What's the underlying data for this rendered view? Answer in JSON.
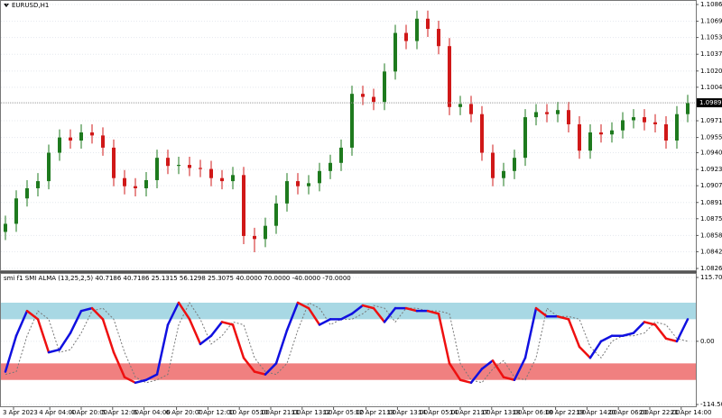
{
  "chart_data": [
    {
      "type": "candlestick",
      "title": "EURUSD,H1",
      "open": [
        1.0862,
        1.087,
        1.0895,
        1.0905,
        1.0912,
        1.094,
        1.0955,
        1.0952,
        1.096,
        1.0957,
        1.0945,
        1.0915,
        1.0907,
        1.0905,
        1.0913,
        1.0935,
        1.0927,
        1.0928,
        1.0925,
        1.0924,
        1.0915,
        1.0912,
        1.0918,
        1.0858,
        1.0855,
        1.0868,
        1.089,
        1.0912,
        1.0907,
        1.091,
        1.0922,
        1.093,
        1.0945,
        1.0998,
        1.0995,
        1.099,
        1.102,
        1.1058,
        1.105,
        1.1072,
        1.1062,
        1.1045,
        1.0985,
        1.0988,
        1.0978,
        1.094,
        1.0915,
        1.0922,
        1.0935,
        1.0975,
        1.098,
        1.0978,
        1.0982,
        1.0968,
        1.0942,
        1.096,
        1.0958,
        1.0962,
        1.0972,
        1.0975,
        1.097,
        1.0968,
        1.0952,
        1.0978
      ],
      "high": [
        1.0878,
        1.0903,
        1.0913,
        1.092,
        1.0948,
        1.0963,
        1.0963,
        1.0968,
        1.0968,
        1.0965,
        1.0953,
        1.0923,
        1.0915,
        1.0921,
        1.0943,
        1.0943,
        1.0936,
        1.0936,
        1.0933,
        1.0932,
        1.0923,
        1.0926,
        1.0926,
        1.0866,
        1.0876,
        1.0898,
        1.092,
        1.092,
        1.0918,
        1.093,
        1.0938,
        1.0953,
        1.1006,
        1.1006,
        1.1003,
        1.1028,
        1.1066,
        1.1066,
        1.108,
        1.108,
        1.107,
        1.1053,
        1.0996,
        1.0996,
        1.0986,
        1.0948,
        1.093,
        1.0943,
        1.0983,
        1.0988,
        1.0988,
        1.099,
        1.099,
        1.0976,
        1.0968,
        1.0968,
        1.097,
        1.098,
        1.0983,
        1.0983,
        1.0978,
        1.0976,
        1.0986,
        1.0997
      ],
      "low": [
        1.0854,
        1.0862,
        1.0887,
        1.0897,
        1.0904,
        1.0932,
        1.0944,
        1.0944,
        1.0949,
        1.0937,
        1.0907,
        1.0899,
        1.0897,
        1.0897,
        1.0905,
        1.0919,
        1.0919,
        1.0917,
        1.0916,
        1.0907,
        1.0904,
        1.0904,
        1.085,
        1.0842,
        1.0847,
        1.086,
        1.0882,
        1.0899,
        1.0899,
        1.0902,
        1.0914,
        1.0922,
        1.0937,
        1.0987,
        1.0982,
        1.0982,
        1.1012,
        1.1042,
        1.1042,
        1.1054,
        1.1037,
        1.0977,
        1.0977,
        1.097,
        1.0932,
        1.0907,
        1.0907,
        1.0914,
        1.0927,
        1.0967,
        1.097,
        1.097,
        1.096,
        1.0934,
        1.0934,
        1.095,
        1.095,
        1.0954,
        1.0964,
        1.0962,
        1.096,
        1.0944,
        1.0944,
        1.097
      ],
      "close": [
        1.087,
        1.0895,
        1.0905,
        1.0912,
        1.094,
        1.0955,
        1.0952,
        1.096,
        1.0957,
        1.0945,
        1.0915,
        1.0907,
        1.0905,
        1.0913,
        1.0935,
        1.0927,
        1.0928,
        1.0925,
        1.0924,
        1.0915,
        1.0912,
        1.0918,
        1.0858,
        1.0855,
        1.0868,
        1.089,
        1.0912,
        1.0907,
        1.091,
        1.0922,
        1.093,
        1.0945,
        1.0998,
        1.0995,
        1.099,
        1.102,
        1.1058,
        1.105,
        1.1072,
        1.1062,
        1.1045,
        1.0985,
        1.0988,
        1.0978,
        1.094,
        1.0915,
        1.0922,
        1.0935,
        1.0975,
        1.098,
        1.0978,
        1.0982,
        1.0968,
        1.0942,
        1.096,
        1.0958,
        1.0962,
        1.0972,
        1.0975,
        1.097,
        1.0968,
        1.0952,
        1.0978,
        1.0989
      ],
      "up_color": "#1e7a1e",
      "down_color": "#d01818",
      "current_price": 1.09892,
      "ylim": [
        1.0826,
        1.1086
      ],
      "yticks": [
        {
          "value": 1.1086,
          "label": "1.10860"
        },
        1.10695,
        1.10535,
        {
          "value": 1.1037,
          "label": "1.10370"
        },
        1.10205,
        1.10045,
        1.09715,
        {
          "value": 1.0955,
          "label": "1.09550"
        },
        {
          "value": 1.094,
          "label": "1.09400"
        },
        1.09235,
        1.09075,
        {
          "value": 1.0891,
          "label": "1.08910"
        },
        {
          "value": 1.0875,
          "label": "1.08750"
        },
        1.08585,
        1.08425,
        {
          "value": 1.0826,
          "label": "1.08260"
        }
      ],
      "grid": true
    },
    {
      "type": "line",
      "title": "smi f1 SMI ALMA (13,25,2,5) 40.7186 40.7186 25.1315 56.1298 25.3075 40.0000 70.0000 -40.0000 -70.0000",
      "series": [
        {
          "values": [
            -55,
            10,
            55,
            40,
            -20,
            -15,
            15,
            55,
            60,
            40,
            -20,
            -65,
            -75,
            -70,
            -60,
            30,
            70,
            40,
            -5,
            10,
            35,
            30,
            -30,
            -55,
            -60,
            -40,
            20,
            70,
            60,
            30,
            40,
            40,
            50,
            65,
            60,
            35,
            60,
            60,
            55,
            55,
            50,
            -40,
            -70,
            -75,
            -50,
            -35,
            -65,
            -70,
            -30,
            60,
            45,
            45,
            40,
            -10,
            -30,
            0,
            10,
            10,
            15,
            35,
            30,
            5,
            0,
            40
          ],
          "color": "#1010e0",
          "down_color": "#ee1010"
        },
        {
          "values": [
            -60,
            -55,
            10,
            55,
            40,
            -20,
            -15,
            15,
            55,
            60,
            40,
            -20,
            -65,
            -75,
            -70,
            -60,
            30,
            70,
            40,
            -5,
            10,
            35,
            30,
            -30,
            -55,
            -60,
            -40,
            20,
            70,
            60,
            30,
            40,
            40,
            50,
            65,
            60,
            35,
            60,
            60,
            55,
            55,
            50,
            -40,
            -70,
            -75,
            -50,
            -35,
            -65,
            -70,
            -30,
            60,
            45,
            45,
            40,
            -10,
            -30,
            0,
            10,
            10,
            15,
            35,
            30,
            5,
            0
          ],
          "color": "#777777"
        }
      ],
      "bands": [
        {
          "range": [
            40,
            70
          ],
          "color": "#a8d8e4"
        },
        {
          "range": [
            -40,
            -70
          ],
          "color": "#f08080"
        }
      ],
      "ylim": [
        -114.5082,
        115.7021
      ],
      "yticks": [
        115.7021,
        {
          "value": 0,
          "label": "0.00"
        },
        -114.5082
      ],
      "xticks": [
        {
          "value": 0.75,
          "label": "3 Apr 2023"
        },
        {
          "value": 4.1,
          "label": "4 Apr 04:00"
        },
        {
          "value": 7,
          "label": "4 Apr 20:00"
        },
        {
          "value": 9.9,
          "label": "5 Apr 12:00"
        },
        {
          "value": 12.8,
          "label": "6 Apr 04:00"
        },
        {
          "value": 15.8,
          "label": "6 Apr 20:00"
        },
        {
          "value": 18.7,
          "label": "7 Apr 12:00"
        },
        {
          "value": 21.6,
          "label": "10 Apr 05:00"
        },
        {
          "value": 24.5,
          "label": "10 Apr 21:00"
        },
        {
          "value": 27.4,
          "label": "11 Apr 13:00"
        },
        {
          "value": 30.3,
          "label": "12 Apr 05:00"
        },
        {
          "value": 33.3,
          "label": "12 Apr 21:00"
        },
        {
          "value": 36.2,
          "label": "13 Apr 13:00"
        },
        {
          "value": 39.1,
          "label": "14 Apr 05:00"
        },
        {
          "value": 42,
          "label": "14 Apr 21:00"
        },
        {
          "value": 44.9,
          "label": "17 Apr 13:00"
        },
        {
          "value": 47.8,
          "label": "18 Apr 06:00"
        },
        {
          "value": 50.8,
          "label": "18 Apr 22:00"
        },
        {
          "value": 53.7,
          "label": "19 Apr 14:00"
        },
        {
          "value": 56.6,
          "label": "20 Apr 06:00"
        },
        {
          "value": 59.5,
          "label": "20 Apr 22:00"
        },
        {
          "value": 62.4,
          "label": "21 Apr 14:00"
        }
      ],
      "grid": true
    }
  ]
}
